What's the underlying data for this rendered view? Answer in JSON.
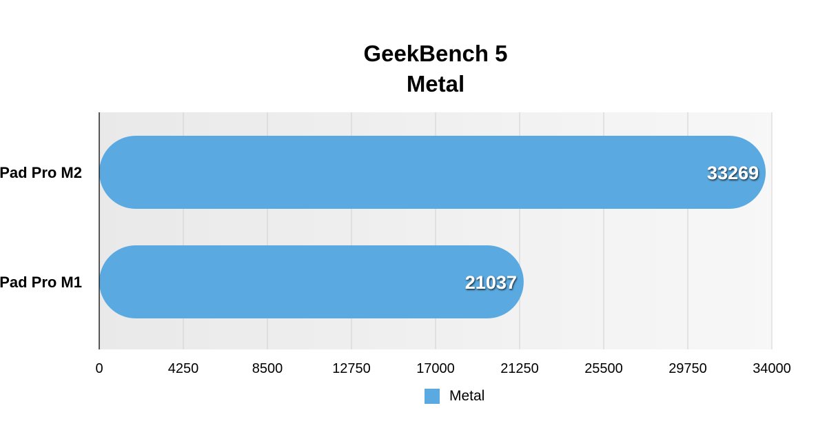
{
  "chart_data": {
    "type": "bar",
    "orientation": "horizontal",
    "title": [
      "GeekBench 5",
      "Metal"
    ],
    "categories": [
      "Pad Pro M2",
      "Pad Pro M1"
    ],
    "series": [
      {
        "name": "Metal",
        "values": [
          33269,
          21037
        ]
      }
    ],
    "data_labels": [
      "33269",
      "21037"
    ],
    "xlim": [
      0,
      34000
    ],
    "xticks": [
      "0",
      "4250",
      "8500",
      "12750",
      "17000",
      "21250",
      "25500",
      "29750",
      "34000"
    ],
    "grid": true,
    "legend": "bottom"
  },
  "colors": {
    "bar": "#5aa9e0",
    "plot_background": "#f0f0f0",
    "gridline": "#d0d0d0"
  }
}
